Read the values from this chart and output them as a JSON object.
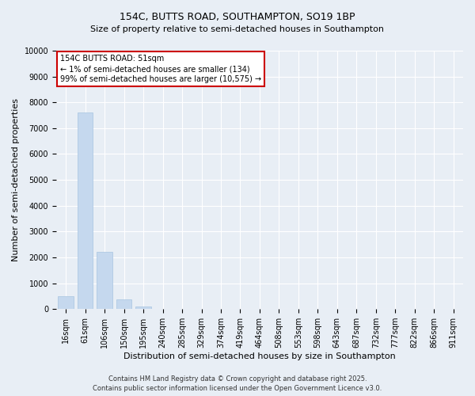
{
  "title": "154C, BUTTS ROAD, SOUTHAMPTON, SO19 1BP",
  "subtitle": "Size of property relative to semi-detached houses in Southampton",
  "xlabel": "Distribution of semi-detached houses by size in Southampton",
  "ylabel": "Number of semi-detached properties",
  "categories": [
    "16sqm",
    "61sqm",
    "106sqm",
    "150sqm",
    "195sqm",
    "240sqm",
    "285sqm",
    "329sqm",
    "374sqm",
    "419sqm",
    "464sqm",
    "508sqm",
    "553sqm",
    "598sqm",
    "643sqm",
    "687sqm",
    "732sqm",
    "777sqm",
    "822sqm",
    "866sqm",
    "911sqm"
  ],
  "values": [
    500,
    7600,
    2200,
    380,
    100,
    15,
    5,
    3,
    2,
    1,
    1,
    1,
    0,
    0,
    0,
    0,
    0,
    0,
    0,
    0,
    0
  ],
  "bar_color": "#c5d8ee",
  "bar_edge_color": "#a8c4e0",
  "ylim": [
    0,
    10000
  ],
  "yticks": [
    0,
    1000,
    2000,
    3000,
    4000,
    5000,
    6000,
    7000,
    8000,
    9000,
    10000
  ],
  "annotation_title": "154C BUTTS ROAD: 51sqm",
  "annotation_line1": "← 1% of semi-detached houses are smaller (134)",
  "annotation_line2": "99% of semi-detached houses are larger (10,575) →",
  "annotation_box_color": "#ffffff",
  "annotation_border_color": "#cc0000",
  "footer_line1": "Contains HM Land Registry data © Crown copyright and database right 2025.",
  "footer_line2": "Contains public sector information licensed under the Open Government Licence v3.0.",
  "background_color": "#e8eef5",
  "plot_bg_color": "#e8eef5",
  "grid_color": "#ffffff",
  "title_fontsize": 9,
  "subtitle_fontsize": 8,
  "axis_label_fontsize": 8,
  "tick_fontsize": 7,
  "annotation_fontsize": 7,
  "footer_fontsize": 6
}
